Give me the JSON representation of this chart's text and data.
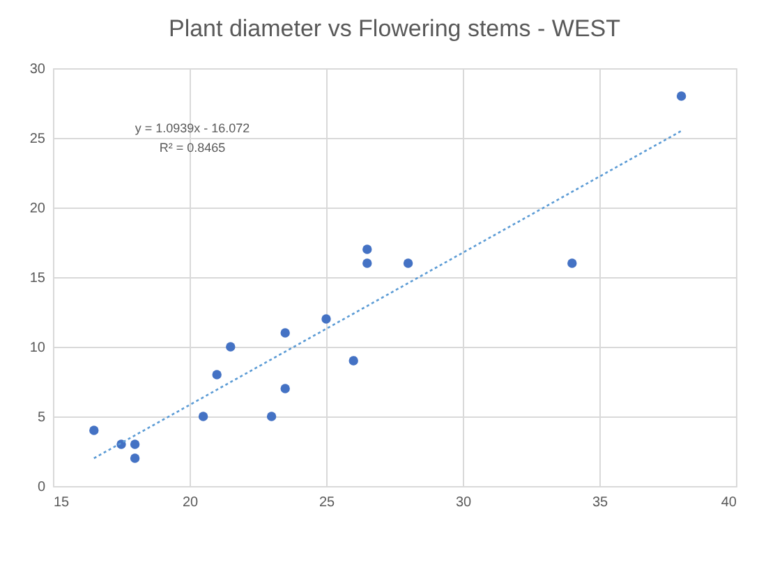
{
  "chart_data": {
    "type": "scatter",
    "title": "Plant diameter vs  Flowering stems - WEST",
    "series": [
      {
        "color": "#4472c4",
        "marker": "circle",
        "x": [
          16.5,
          17.5,
          18,
          18,
          20.5,
          21,
          21.5,
          23,
          23.5,
          23.5,
          25,
          26,
          26.5,
          26.5,
          28,
          34,
          38
        ],
        "values": [
          4,
          3,
          3,
          2,
          5,
          8,
          10,
          5,
          7,
          11,
          12,
          9,
          16,
          17,
          16,
          16,
          28
        ]
      },
      {
        "type": "line",
        "color": "#5b9bd5",
        "line_style": "dotted",
        "x": [
          16.5,
          38
        ],
        "values": [
          2.0,
          25.5
        ]
      }
    ],
    "annotations": [
      "y = 1.0939x - 16.072",
      "R² = 0.8465"
    ],
    "xlim": [
      15,
      40
    ],
    "xticks": [
      15,
      20,
      25,
      30,
      35,
      40
    ],
    "ylim": [
      0,
      30
    ],
    "yticks": [
      0,
      5,
      10,
      15,
      20,
      25,
      30
    ],
    "grid": true
  }
}
